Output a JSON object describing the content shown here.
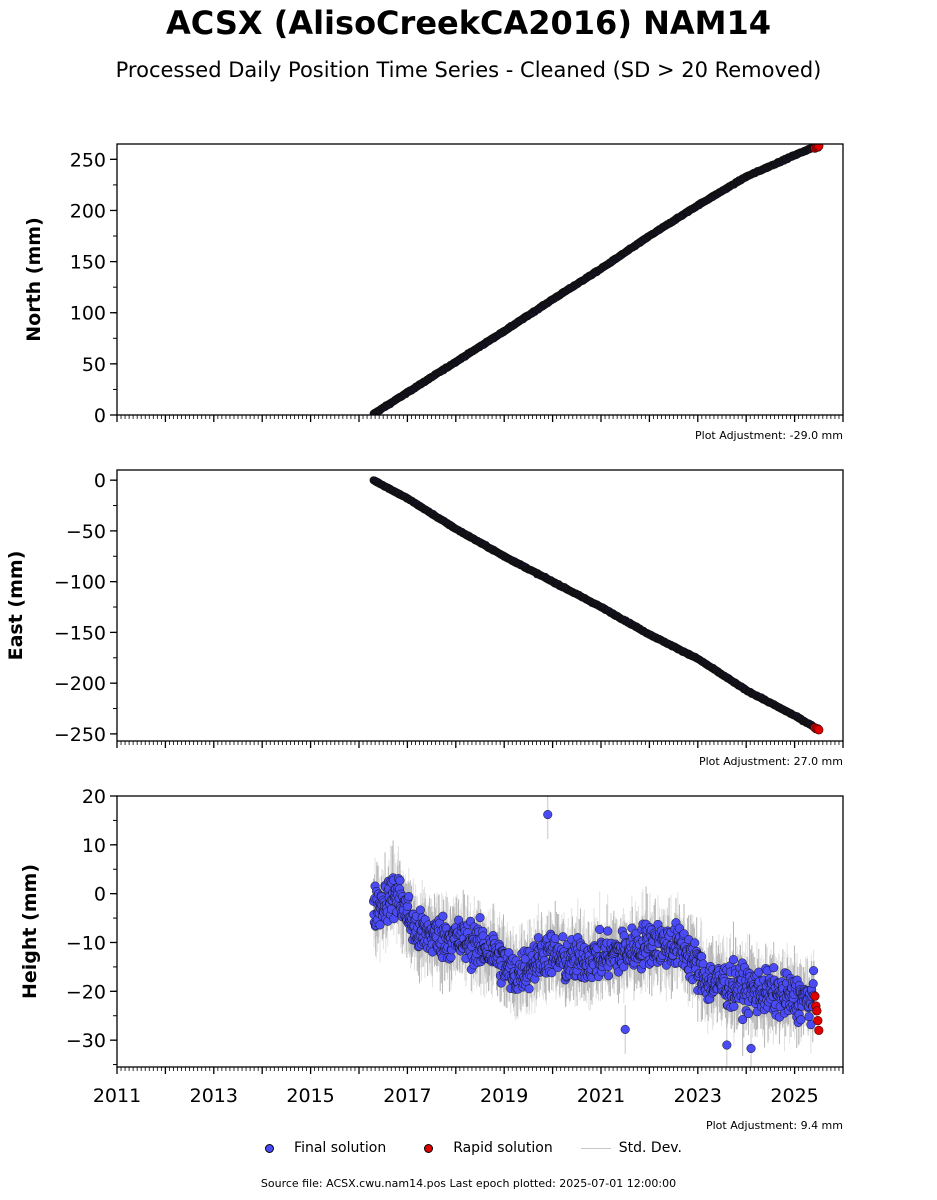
{
  "header": {
    "title": "ACSX (AlisoCreekCA2016) NAM14",
    "subtitle": "Processed Daily Position Time Series - Cleaned (SD > 20 Removed)"
  },
  "colors": {
    "final": "#4b4bf5",
    "rapid": "#e00000",
    "stddev": "#c8c8c8",
    "trend": "#1a1a4a"
  },
  "legend": {
    "final_label": "Final solution",
    "rapid_label": "Rapid solution",
    "std_label": "Std. Dev."
  },
  "footer": {
    "source": "Source file: ACSX.cwu.nam14.pos  Last epoch plotted: 2025-07-01 12:00:00"
  },
  "chart_data": [
    {
      "type": "scatter",
      "ylabel": "North (mm)",
      "adjustment": "Plot Adjustment: -29.0 mm",
      "xlim": [
        2011,
        2026
      ],
      "ylim": [
        0,
        265
      ],
      "yticks": [
        0,
        50,
        100,
        150,
        200,
        250
      ],
      "x_ticks": [],
      "series": [
        {
          "name": "Final solution",
          "x": [
            2016.3,
            2017.0,
            2018.0,
            2019.0,
            2020.0,
            2021.0,
            2022.0,
            2023.0,
            2024.0,
            2025.0,
            2025.4
          ],
          "values": [
            1,
            22,
            52,
            82,
            113,
            143,
            175,
            205,
            233,
            254,
            262
          ]
        },
        {
          "name": "Rapid solution",
          "x": [
            2025.42,
            2025.45,
            2025.48,
            2025.5
          ],
          "values": [
            261,
            262,
            262,
            263
          ]
        }
      ]
    },
    {
      "type": "scatter",
      "ylabel": "East (mm)",
      "adjustment": "Plot Adjustment: 27.0 mm",
      "xlim": [
        2011,
        2026
      ],
      "ylim": [
        -257,
        10
      ],
      "yticks": [
        0,
        -50,
        -100,
        -150,
        -200,
        -250
      ],
      "ytick_labels": [
        "0",
        "−50",
        "−100",
        "−150",
        "−200",
        "−250"
      ],
      "x_ticks": [],
      "series": [
        {
          "name": "Final solution",
          "x": [
            2016.3,
            2017.0,
            2018.0,
            2019.0,
            2020.0,
            2021.0,
            2022.0,
            2023.0,
            2024.0,
            2025.0,
            2025.4
          ],
          "values": [
            0,
            -18,
            -48,
            -75,
            -100,
            -125,
            -152,
            -176,
            -207,
            -232,
            -243
          ]
        },
        {
          "name": "Rapid solution",
          "x": [
            2025.42,
            2025.45,
            2025.48,
            2025.5
          ],
          "values": [
            -244,
            -245,
            -245,
            -246
          ]
        }
      ]
    },
    {
      "type": "scatter",
      "ylabel": "Height (mm)",
      "adjustment": "Plot Adjustment: 9.4 mm",
      "xlim": [
        2011,
        2026
      ],
      "ylim": [
        -35.5,
        20
      ],
      "yticks": [
        20,
        10,
        0,
        -10,
        -20,
        -30
      ],
      "ytick_labels": [
        "20",
        "10",
        "0",
        "−10",
        "−20",
        "−30"
      ],
      "x_ticks": [
        2011,
        2013,
        2015,
        2017,
        2019,
        2021,
        2023,
        2025
      ],
      "series": [
        {
          "name": "Final solution",
          "x": [
            2016.3,
            2016.8,
            2017.2,
            2017.8,
            2018.3,
            2018.8,
            2019.2,
            2019.9,
            2020.3,
            2021.0,
            2021.5,
            2022.0,
            2022.7,
            2023.2,
            2023.8,
            2024.3,
            2024.8,
            2025.4
          ],
          "values": [
            -3,
            0,
            -8,
            -9,
            -10,
            -12,
            -17,
            -12,
            -14,
            -13,
            -12,
            -10,
            -11,
            -18,
            -19,
            -20,
            -21,
            -22
          ]
        },
        {
          "name": "Rapid solution",
          "x": [
            2025.42,
            2025.44,
            2025.46,
            2025.48,
            2025.5
          ],
          "values": [
            -21,
            -23,
            -24,
            -26,
            -28
          ]
        }
      ],
      "outliers": [
        {
          "x": 2019.9,
          "y": 16.2
        },
        {
          "x": 2021.5,
          "y": -27.8
        },
        {
          "x": 2023.6,
          "y": -31.0
        },
        {
          "x": 2024.1,
          "y": -31.7
        }
      ]
    }
  ]
}
